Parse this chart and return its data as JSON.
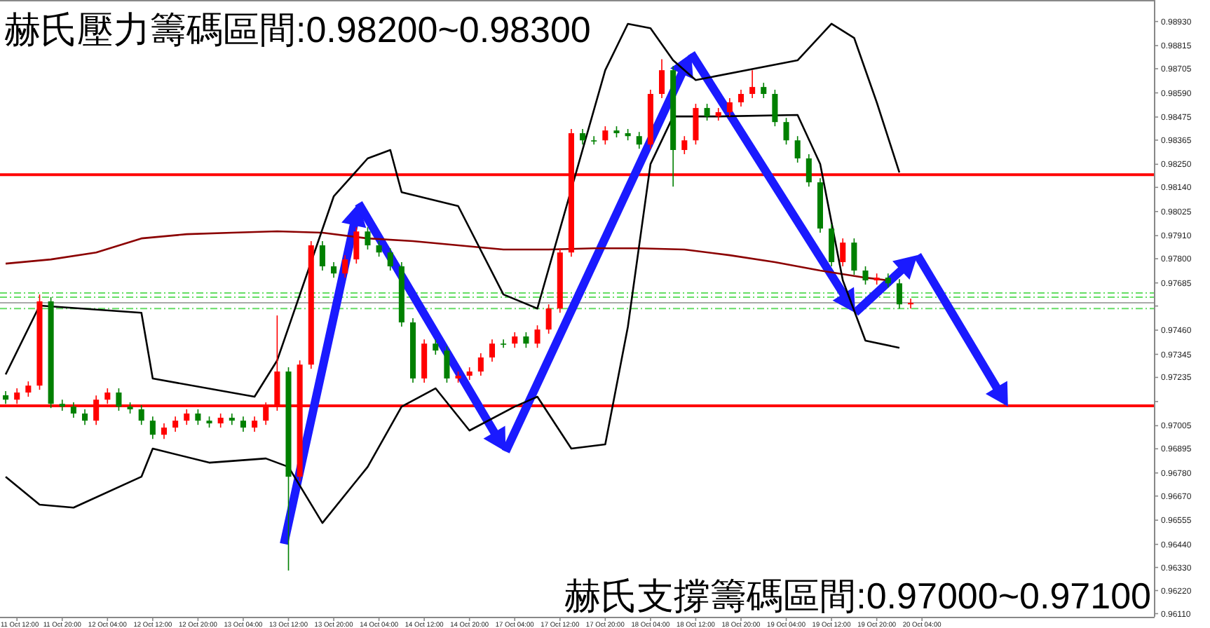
{
  "chart_data": {
    "type": "candlestick",
    "title": "赫氏壓力籌碼區間:0.98200~0.98300",
    "annotations": [
      "赫氏支撐籌碼區間:0.97000~0.97100"
    ],
    "categories": [
      null,
      "11 Oct 12:00",
      null,
      null,
      null,
      "11 Oct 20:00",
      null,
      null,
      null,
      "12 Oct 04:00",
      null,
      null,
      null,
      "12 Oct 12:00",
      null,
      null,
      null,
      "12 Oct 20:00",
      null,
      null,
      null,
      "13 Oct 04:00",
      null,
      null,
      null,
      "13 Oct 12:00",
      null,
      null,
      null,
      "13 Oct 20:00",
      null,
      null,
      null,
      "14 Oct 04:00",
      null,
      null,
      null,
      "14 Oct 12:00",
      null,
      null,
      null,
      "14 Oct 20:00",
      null,
      null,
      null,
      "17 Oct 04:00",
      null,
      null,
      null,
      "17 Oct 12:00",
      null,
      null,
      null,
      "17 Oct 20:00",
      null,
      null,
      null,
      "18 Oct 04:00",
      null,
      null,
      null,
      "18 Oct 12:00",
      null,
      null,
      null,
      "18 Oct 20:00",
      null,
      null,
      null,
      "19 Oct 04:00",
      null,
      null,
      null,
      "19 Oct 12:00",
      null,
      null,
      null,
      "19 Oct 20:00",
      null,
      null,
      null,
      "20 Oct 04:00",
      null,
      null,
      null,
      null,
      null,
      null,
      null,
      null,
      null,
      null,
      null,
      null,
      null,
      null,
      null,
      null,
      null,
      null,
      null,
      null
    ],
    "ohlc": [
      [
        0.9715,
        0.9717,
        0.97109,
        0.97129
      ],
      [
        0.97129,
        0.97183,
        0.97109,
        0.97163
      ],
      [
        0.97163,
        0.97216,
        0.97143,
        0.97196
      ],
      [
        0.97196,
        0.9763,
        0.97176,
        0.97597
      ],
      [
        0.97597,
        0.97617,
        0.97089,
        0.97109
      ],
      [
        0.97109,
        0.97129,
        0.97076,
        0.97096
      ],
      [
        0.97096,
        0.97116,
        0.97043,
        0.97063
      ],
      [
        0.97063,
        0.97083,
        0.97009,
        0.97029
      ],
      [
        0.97029,
        0.97149,
        0.97009,
        0.97129
      ],
      [
        0.97129,
        0.97183,
        0.97109,
        0.97163
      ],
      [
        0.97163,
        0.97183,
        0.97076,
        0.97096
      ],
      [
        0.97096,
        0.97116,
        0.97063,
        0.97083
      ],
      [
        0.97083,
        0.97103,
        0.97009,
        0.97029
      ],
      [
        0.97029,
        0.97049,
        0.96942,
        0.96962
      ],
      [
        0.96962,
        0.97016,
        0.96942,
        0.96996
      ],
      [
        0.96996,
        0.97049,
        0.96976,
        0.97029
      ],
      [
        0.97029,
        0.97083,
        0.97009,
        0.97063
      ],
      [
        0.97063,
        0.97083,
        0.97009,
        0.97029
      ],
      [
        0.97029,
        0.97049,
        0.96996,
        0.97016
      ],
      [
        0.97016,
        0.97063,
        0.96996,
        0.97043
      ],
      [
        0.97043,
        0.97063,
        0.97009,
        0.97029
      ],
      [
        0.97029,
        0.97049,
        0.96976,
        0.96996
      ],
      [
        0.96996,
        0.97049,
        0.96976,
        0.97029
      ],
      [
        0.97029,
        0.97116,
        0.97009,
        0.97096
      ],
      [
        0.97096,
        0.9753,
        0.97076,
        0.97263
      ],
      [
        0.97263,
        0.97283,
        0.96315,
        0.96762
      ],
      [
        0.96762,
        0.97316,
        0.96742,
        0.97296
      ],
      [
        0.97296,
        0.97884,
        0.97276,
        0.97864
      ],
      [
        0.97864,
        0.97884,
        0.97744,
        0.97764
      ],
      [
        0.97764,
        0.97784,
        0.9771,
        0.9773
      ],
      [
        0.9773,
        0.97817,
        0.9771,
        0.97797
      ],
      [
        0.97797,
        0.9795,
        0.97777,
        0.9793
      ],
      [
        0.9793,
        0.9795,
        0.97844,
        0.97864
      ],
      [
        0.97864,
        0.97884,
        0.9781,
        0.9783
      ],
      [
        0.9783,
        0.9785,
        0.97744,
        0.97764
      ],
      [
        0.97764,
        0.97784,
        0.97477,
        0.97497
      ],
      [
        0.97497,
        0.97517,
        0.9721,
        0.9723
      ],
      [
        0.9723,
        0.97416,
        0.9721,
        0.97396
      ],
      [
        0.97396,
        0.97416,
        0.97343,
        0.97363
      ],
      [
        0.97363,
        0.97383,
        0.9721,
        0.9723
      ],
      [
        0.9723,
        0.97263,
        0.9721,
        0.97243
      ],
      [
        0.97243,
        0.97283,
        0.97223,
        0.97263
      ],
      [
        0.97263,
        0.9735,
        0.97243,
        0.9733
      ],
      [
        0.9733,
        0.97416,
        0.9731,
        0.97396
      ],
      [
        0.97396,
        0.97416,
        0.97376,
        0.97396
      ],
      [
        0.97396,
        0.9745,
        0.97376,
        0.9743
      ],
      [
        0.9743,
        0.9745,
        0.97376,
        0.97396
      ],
      [
        0.97396,
        0.97483,
        0.97376,
        0.97463
      ],
      [
        0.97463,
        0.97583,
        0.97443,
        0.97563
      ],
      [
        0.97563,
        0.9785,
        0.97543,
        0.9783
      ],
      [
        0.9783,
        0.98418,
        0.9781,
        0.98398
      ],
      [
        0.98398,
        0.98418,
        0.98344,
        0.98364
      ],
      [
        0.98364,
        0.98384,
        0.98344,
        0.98364
      ],
      [
        0.98364,
        0.98431,
        0.98344,
        0.98411
      ],
      [
        0.98411,
        0.98431,
        0.98378,
        0.98398
      ],
      [
        0.98398,
        0.98418,
        0.98364,
        0.98384
      ],
      [
        0.98384,
        0.98404,
        0.98324,
        0.98344
      ],
      [
        0.98344,
        0.98605,
        0.98324,
        0.98585
      ],
      [
        0.98585,
        0.9875,
        0.98565,
        0.98698
      ],
      [
        0.98698,
        0.98718,
        0.98144,
        0.98318
      ],
      [
        0.98318,
        0.98384,
        0.98298,
        0.98364
      ],
      [
        0.98364,
        0.98538,
        0.98344,
        0.98518
      ],
      [
        0.98518,
        0.98538,
        0.98458,
        0.98478
      ],
      [
        0.98478,
        0.98518,
        0.98458,
        0.98498
      ],
      [
        0.98498,
        0.98565,
        0.98478,
        0.98545
      ],
      [
        0.98545,
        0.98605,
        0.98525,
        0.98585
      ],
      [
        0.98585,
        0.98698,
        0.98565,
        0.98618
      ],
      [
        0.98618,
        0.98638,
        0.98565,
        0.98585
      ],
      [
        0.98585,
        0.98605,
        0.98431,
        0.98451
      ],
      [
        0.98451,
        0.98471,
        0.98344,
        0.98364
      ],
      [
        0.98364,
        0.98384,
        0.98258,
        0.98278
      ],
      [
        0.98278,
        0.98298,
        0.98144,
        0.98164
      ],
      [
        0.98164,
        0.98184,
        0.97924,
        0.97944
      ],
      [
        0.97944,
        0.97964,
        0.97764,
        0.97784
      ],
      [
        0.97784,
        0.97897,
        0.97764,
        0.97877
      ],
      [
        0.97877,
        0.97897,
        0.97724,
        0.97744
      ],
      [
        0.97744,
        0.97764,
        0.97677,
        0.97697
      ],
      [
        0.97697,
        0.9773,
        0.97677,
        0.9771
      ],
      [
        0.9771,
        0.9773,
        0.97663,
        0.97683
      ],
      [
        0.97683,
        0.97703,
        0.97563,
        0.97583
      ],
      [
        0.97583,
        0.9761,
        0.97563,
        0.9759
      ],
      null,
      null,
      null,
      null,
      null,
      null,
      null,
      null,
      null,
      null,
      null,
      null,
      null,
      null,
      null,
      null,
      null,
      null,
      null,
      null,
      null
    ],
    "colors": [
      "#008000",
      "#ff0000",
      "#ff0000",
      "#ff0000",
      "#008000",
      "#008000",
      "#008000",
      "#008000",
      "#ff0000",
      "#ff0000",
      "#008000",
      "#008000",
      "#008000",
      "#008000",
      "#ff0000",
      "#ff0000",
      "#ff0000",
      "#008000",
      "#008000",
      "#ff0000",
      "#008000",
      "#008000",
      "#ff0000",
      "#ff0000",
      "#ff0000",
      "#008000",
      "#ff0000",
      "#ff0000",
      "#008000",
      "#008000",
      "#ff0000",
      "#ff0000",
      "#008000",
      "#008000",
      "#008000",
      "#008000",
      "#008000",
      "#ff0000",
      "#008000",
      "#008000",
      "#ff0000",
      "#ff0000",
      "#ff0000",
      "#ff0000",
      "#008000",
      "#ff0000",
      "#008000",
      "#ff0000",
      "#ff0000",
      "#ff0000",
      "#ff0000",
      "#008000",
      "#008000",
      "#ff0000",
      "#008000",
      "#008000",
      "#008000",
      "#ff0000",
      "#ff0000",
      "#008000",
      "#ff0000",
      "#ff0000",
      "#008000",
      "#ff0000",
      "#ff0000",
      "#ff0000",
      "#ff0000",
      "#008000",
      "#008000",
      "#008000",
      "#008000",
      "#008000",
      "#008000",
      "#008000",
      "#ff0000",
      "#008000",
      "#008000",
      "#ff0000",
      "#008000",
      "#008000",
      "#ff0000",
      null,
      null,
      null,
      null,
      null,
      null,
      null,
      null,
      null,
      null,
      null,
      null,
      null,
      null,
      null,
      null,
      null,
      null,
      null,
      null,
      null
    ],
    "series": [
      {
        "type": "line",
        "color": "#8b0000",
        "values": [
          0.97777,
          null,
          null,
          null,
          0.97797,
          null,
          null,
          null,
          0.9783,
          null,
          null,
          null,
          0.97897,
          null,
          null,
          null,
          0.97917,
          null,
          null,
          null,
          0.97924,
          null,
          null,
          null,
          0.97931,
          null,
          null,
          null,
          0.97924,
          null,
          null,
          null,
          0.97897,
          null,
          null,
          null,
          0.97884,
          null,
          null,
          null,
          0.97864,
          null,
          null,
          null,
          0.97844,
          null,
          null,
          null,
          0.97844,
          null,
          null,
          null,
          0.9785,
          null,
          null,
          null,
          0.9785,
          null,
          null,
          null,
          0.97844,
          null,
          null,
          null,
          0.97817,
          null,
          null,
          null,
          0.97784,
          null,
          null,
          null,
          0.97744,
          null,
          null,
          null,
          0.9771,
          null,
          0.97697,
          null,
          null,
          null,
          null,
          null,
          null,
          null,
          null,
          null,
          null,
          null,
          null,
          null,
          null,
          null,
          null,
          null,
          null,
          null,
          null,
          null,
          null,
          null
        ]
      },
      {
        "type": "line",
        "color": "#000000",
        "values": [
          0.97249,
          null,
          null,
          0.97577,
          null,
          null,
          null,
          null,
          null,
          null,
          null,
          null,
          0.97543,
          0.9723,
          null,
          null,
          null,
          null,
          null,
          null,
          null,
          null,
          0.97143,
          null,
          0.97316,
          null,
          null,
          null,
          null,
          0.98097,
          null,
          null,
          0.98278,
          null,
          0.98318,
          0.98117,
          null,
          null,
          null,
          null,
          0.98051,
          null,
          null,
          null,
          0.9763,
          null,
          null,
          0.97563,
          null,
          null,
          null,
          null,
          null,
          0.98698,
          null,
          0.98919,
          null,
          0.98898,
          null,
          0.98745,
          null,
          0.98651,
          null,
          null,
          null,
          null,
          null,
          null,
          null,
          null,
          0.98745,
          null,
          null,
          0.98919,
          null,
          0.98852,
          null,
          0.98545,
          null,
          0.98211,
          null,
          null,
          null,
          null,
          null,
          null,
          null,
          null,
          null,
          null,
          null,
          null,
          null,
          null,
          null,
          null,
          null,
          null,
          null,
          null,
          null,
          null
        ]
      },
      {
        "type": "line",
        "color": "#000000",
        "values": [
          0.96762,
          null,
          null,
          0.96629,
          null,
          null,
          0.96615,
          null,
          null,
          null,
          null,
          null,
          0.96762,
          0.96896,
          null,
          null,
          null,
          null,
          0.96829,
          null,
          null,
          null,
          null,
          0.96849,
          null,
          0.96809,
          null,
          null,
          0.96542,
          null,
          null,
          null,
          0.96809,
          null,
          null,
          0.97096,
          null,
          null,
          0.97183,
          null,
          null,
          0.96982,
          null,
          null,
          null,
          0.97096,
          null,
          0.97143,
          null,
          null,
          0.96896,
          null,
          null,
          0.96916,
          null,
          0.97476,
          null,
          0.98251,
          null,
          0.98478,
          null,
          null,
          null,
          0.98478,
          null,
          null,
          null,
          null,
          null,
          null,
          0.98485,
          null,
          0.98251,
          null,
          0.97697,
          null,
          0.9741,
          null,
          null,
          0.97376,
          null,
          null,
          null,
          null,
          null,
          null,
          null,
          null,
          null,
          null,
          null,
          null,
          null,
          null,
          null,
          null,
          null,
          null,
          null,
          null,
          null,
          null
        ]
      }
    ],
    "ref_lines": [
      {
        "axis": "y",
        "value": 0.982,
        "color": "#ff0000",
        "line_style": "solid"
      },
      {
        "axis": "y",
        "value": 0.971,
        "color": "#ff0000",
        "line_style": "solid"
      },
      {
        "axis": "y",
        "value": 0.97637,
        "color": "#66dd66",
        "line_style": "dashed"
      },
      {
        "axis": "y",
        "value": 0.97617,
        "color": "#66dd66",
        "line_style": "dashed"
      },
      {
        "axis": "y",
        "value": 0.9759,
        "color": "#aaaaaa",
        "line_style": "solid"
      },
      {
        "axis": "y",
        "value": 0.97563,
        "color": "#66dd66",
        "line_style": "dashed"
      }
    ],
    "ylim": [
      0.96095,
      0.99019
    ],
    "yticks": [
      {
        "value": 0.9893,
        "label": "0.98930"
      },
      {
        "value": 0.98815,
        "label": "0.98815"
      },
      {
        "value": 0.98705,
        "label": "0.98705"
      },
      {
        "value": 0.9859,
        "label": "0.98590"
      },
      {
        "value": 0.98475,
        "label": "0.98475"
      },
      {
        "value": 0.98365,
        "label": "0.98365"
      },
      {
        "value": 0.9825,
        "label": "0.98250"
      },
      {
        "value": 0.9814,
        "label": "0.98140"
      },
      {
        "value": 0.98025,
        "label": "0.98025"
      },
      {
        "value": 0.9791,
        "label": "0.97910"
      },
      {
        "value": 0.978,
        "label": "0.97800"
      },
      {
        "value": 0.97685,
        "label": "0.97685"
      },
      {
        "value": 0.97575,
        "label": null
      },
      {
        "value": 0.9746,
        "label": "0.97460"
      },
      {
        "value": 0.97345,
        "label": "0.97345"
      },
      {
        "value": 0.97235,
        "label": "0.97235"
      },
      {
        "value": 0.9712,
        "label": null
      },
      {
        "value": 0.97005,
        "label": "0.97005"
      },
      {
        "value": 0.96895,
        "label": "0.96895"
      },
      {
        "value": 0.9678,
        "label": "0.96780"
      },
      {
        "value": 0.9667,
        "label": "0.96670"
      },
      {
        "value": 0.96555,
        "label": "0.96555"
      },
      {
        "value": 0.9644,
        "label": "0.96440"
      },
      {
        "value": 0.9633,
        "label": "0.96330"
      },
      {
        "value": 0.9622,
        "label": "0.96220"
      },
      {
        "value": 0.9611,
        "label": "0.96110"
      }
    ]
  }
}
